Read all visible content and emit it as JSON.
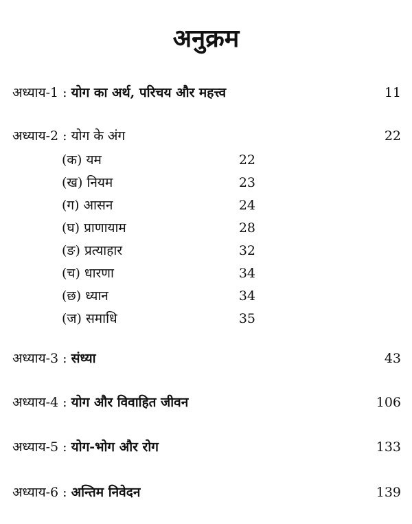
{
  "title": "अनुक्रम",
  "chapters": [
    {
      "prefix": "अध्याय-1 : ",
      "title": "योग का अर्थ, परिचय और महत्त्व",
      "page": "11"
    },
    {
      "prefix": "अध्याय-2 : ",
      "title": "योग के अंग",
      "page": "22"
    },
    {
      "prefix": "अध्याय-3 : ",
      "title": "संध्या",
      "page": "43"
    },
    {
      "prefix": "अध्याय-4 : ",
      "title": "योग और विवाहित जीवन",
      "page": "106"
    },
    {
      "prefix": "अध्याय-5 : ",
      "title": "योग-भोग और रोग",
      "page": "133"
    },
    {
      "prefix": "अध्याय-6 : ",
      "title": "अन्तिम निवेदन",
      "page": "139"
    }
  ],
  "subsections": [
    {
      "label": "(क)  यम",
      "page": "22"
    },
    {
      "label": "(ख)  नियम",
      "page": "23"
    },
    {
      "label": "(ग)  आसन",
      "page": "24"
    },
    {
      "label": "(घ)  प्राणायाम",
      "page": "28"
    },
    {
      "label": "(ङ)  प्रत्याहार",
      "page": "32"
    },
    {
      "label": "(च)  धारणा",
      "page": "34"
    },
    {
      "label": "(छ)  ध्यान",
      "page": "34"
    },
    {
      "label": "(ज)  समाधि",
      "page": "35"
    }
  ]
}
